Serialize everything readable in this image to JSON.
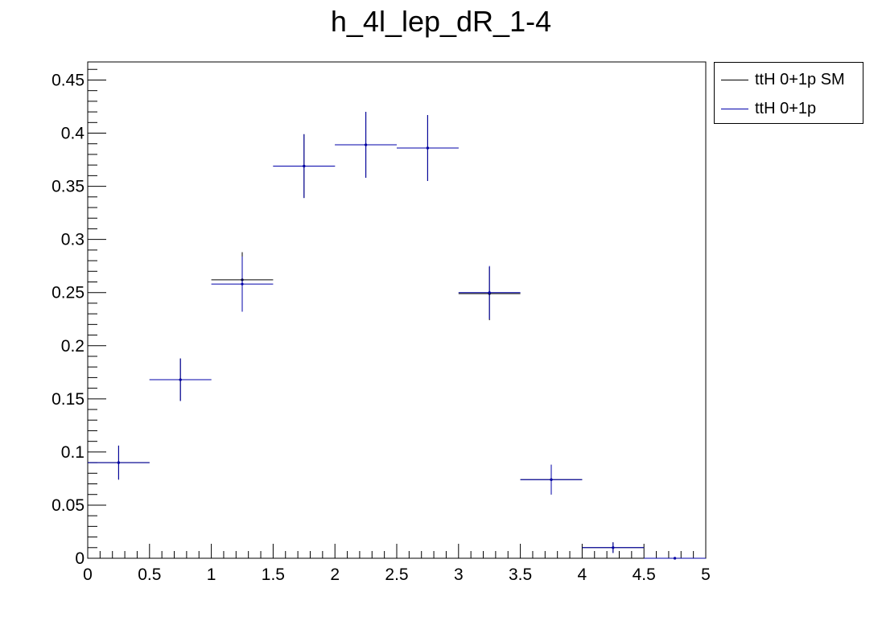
{
  "chart_data": {
    "type": "scatter",
    "title": "h_4l_lep_dR_1-4",
    "xlabel": "",
    "ylabel": "",
    "xlim": [
      0,
      5
    ],
    "ylim": [
      0,
      0.467
    ],
    "bin_width": 0.5,
    "x_ticks": [
      "0",
      "0.5",
      "1",
      "1.5",
      "2",
      "2.5",
      "3",
      "3.5",
      "4",
      "4.5",
      "5"
    ],
    "y_ticks": [
      "0",
      "0.05",
      "0.1",
      "0.15",
      "0.2",
      "0.25",
      "0.3",
      "0.35",
      "0.4",
      "0.45"
    ],
    "legend_position": "top-right (outside)",
    "grid": false,
    "x": [
      0.25,
      0.75,
      1.25,
      1.75,
      2.25,
      2.75,
      3.25,
      3.75,
      4.25,
      4.75
    ],
    "series": [
      {
        "name": "ttH 0+1p SM",
        "color": "#000000",
        "values": [
          0.09,
          0.168,
          0.262,
          0.369,
          0.389,
          0.386,
          0.249,
          0.074,
          0.01,
          0.0
        ],
        "errors": [
          0.016,
          0.02,
          0.026,
          0.03,
          0.031,
          0.031,
          0.025,
          0.014,
          0.005,
          0.0
        ]
      },
      {
        "name": "ttH 0+1p",
        "color": "#0000aa",
        "values": [
          0.09,
          0.168,
          0.258,
          0.369,
          0.389,
          0.386,
          0.25,
          0.074,
          0.01,
          0.0
        ],
        "errors": [
          0.016,
          0.02,
          0.026,
          0.03,
          0.031,
          0.031,
          0.025,
          0.014,
          0.005,
          0.0
        ]
      }
    ]
  }
}
